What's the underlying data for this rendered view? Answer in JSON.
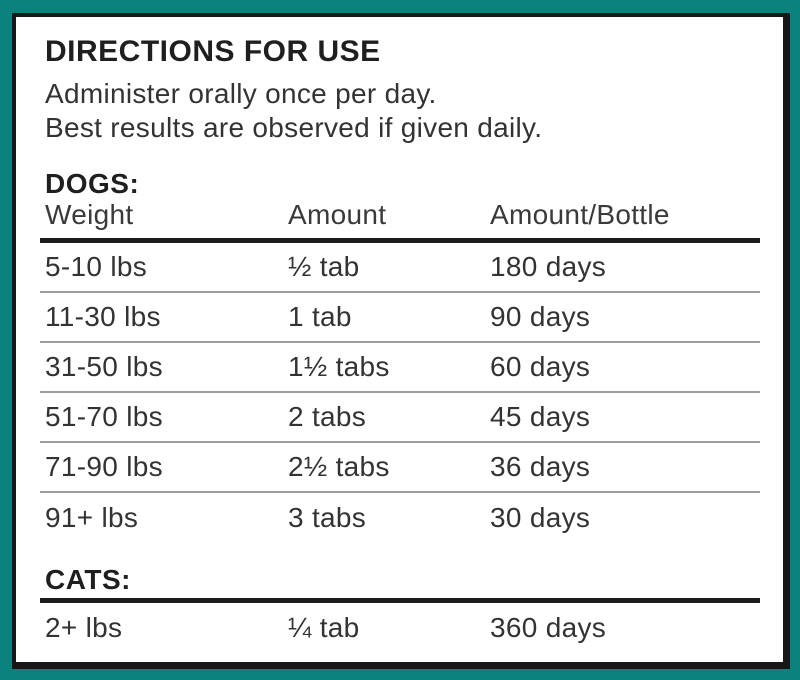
{
  "panel": {
    "title": "DIRECTIONS FOR USE",
    "instructions": [
      "Administer orally once per day.",
      "Best results are observed if given daily."
    ],
    "dogs": {
      "heading": "DOGS:",
      "columns": [
        "Weight",
        "Amount",
        "Amount/Bottle"
      ],
      "rows": [
        [
          "5-10 lbs",
          "½ tab",
          "180 days"
        ],
        [
          "11-30 lbs",
          "1 tab",
          "90 days"
        ],
        [
          "31-50 lbs",
          "1½ tabs",
          "60 days"
        ],
        [
          "51-70 lbs",
          "2 tabs",
          "45 days"
        ],
        [
          "71-90 lbs",
          "2½ tabs",
          "36 days"
        ],
        [
          "91+ lbs",
          "3 tabs",
          "30 days"
        ]
      ]
    },
    "cats": {
      "heading": "CATS:",
      "rows": [
        [
          "2+ lbs",
          "¼ tab",
          "360 days"
        ]
      ]
    },
    "colors": {
      "frame_teal": "#0b827e",
      "border_black": "#161616",
      "rule_black": "#1c1c1c",
      "divider_gray": "#9e9e9e",
      "text": "#333333"
    }
  }
}
